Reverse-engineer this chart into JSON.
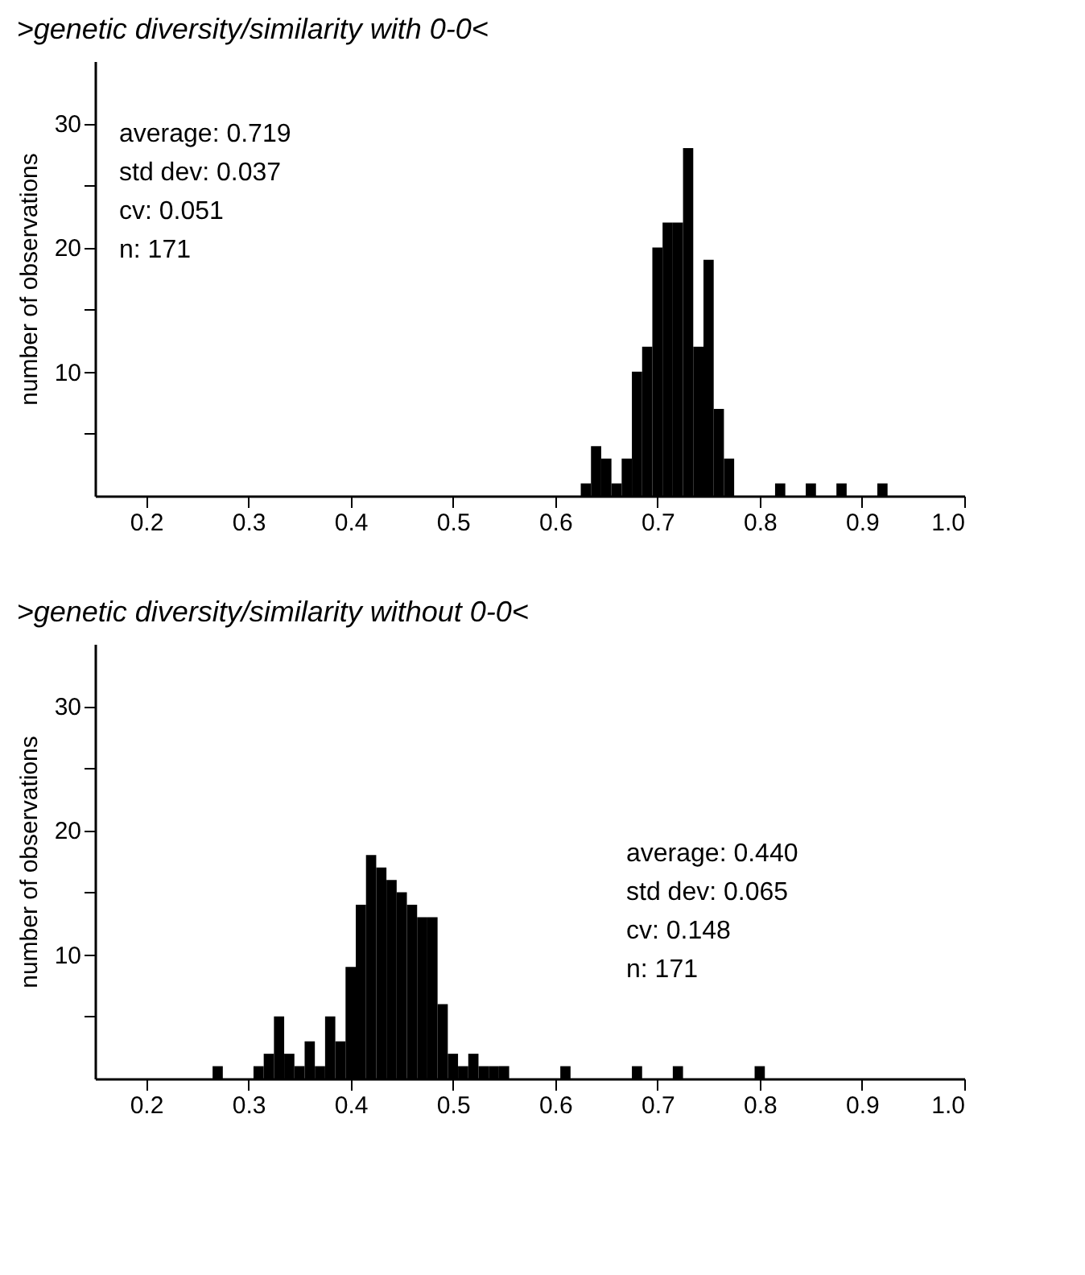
{
  "chart_data": [
    {
      "type": "histogram",
      "title": ">genetic diversity/similarity with 0-0<",
      "ylabel": "number of observations",
      "bins": [
        0.625,
        0.635,
        0.645,
        0.655,
        0.665,
        0.675,
        0.685,
        0.695,
        0.705,
        0.715,
        0.725,
        0.735,
        0.745,
        0.755,
        0.765,
        0.775,
        0.785,
        0.795,
        0.805,
        0.815,
        0.825,
        0.835,
        0.845,
        0.855,
        0.865,
        0.875,
        0.885,
        0.895,
        0.905,
        0.915,
        0.925
      ],
      "values": [
        1,
        4,
        3,
        1,
        3,
        10,
        12,
        20,
        22,
        22,
        28,
        12,
        19,
        7,
        3,
        0,
        0,
        0,
        0,
        1,
        0,
        0,
        1,
        0,
        0,
        1,
        0,
        0,
        0,
        1
      ],
      "color": "#000000",
      "xlim": [
        0.15,
        1.0
      ],
      "xticks": [
        0.2,
        0.3,
        0.4,
        0.5,
        0.6,
        0.7,
        0.8,
        0.9,
        {
          "value": 1.0,
          "label": "1.0"
        }
      ],
      "ylim": [
        0,
        35
      ],
      "yticks": [
        {
          "value": 5,
          "label": null
        },
        10,
        {
          "value": 15,
          "label": null
        },
        20,
        {
          "value": 25,
          "label": null
        },
        30
      ],
      "annotations": [
        "average: 0.719",
        "std dev: 0.037",
        "cv: 0.051",
        "n: 171"
      ],
      "grid": false
    },
    {
      "type": "histogram",
      "title": ">genetic diversity/similarity without 0-0<",
      "ylabel": "number of observations",
      "bins": [
        0.265,
        0.275,
        0.285,
        0.295,
        0.305,
        0.315,
        0.325,
        0.335,
        0.345,
        0.355,
        0.365,
        0.375,
        0.385,
        0.395,
        0.405,
        0.415,
        0.425,
        0.435,
        0.445,
        0.455,
        0.465,
        0.475,
        0.485,
        0.495,
        0.505,
        0.515,
        0.525,
        0.535,
        0.545,
        0.555,
        0.565,
        0.575,
        0.585,
        0.595,
        0.605,
        0.615,
        0.625,
        0.635,
        0.645,
        0.655,
        0.665,
        0.675,
        0.685,
        0.695,
        0.705,
        0.715,
        0.725,
        0.735,
        0.745,
        0.755,
        0.765,
        0.775,
        0.785,
        0.795,
        0.805
      ],
      "values": [
        1,
        0,
        0,
        0,
        1,
        2,
        5,
        2,
        1,
        3,
        1,
        5,
        3,
        9,
        14,
        18,
        17,
        16,
        15,
        14,
        13,
        13,
        6,
        2,
        1,
        2,
        1,
        1,
        1,
        0,
        0,
        0,
        0,
        0,
        1,
        0,
        0,
        0,
        0,
        0,
        0,
        1,
        0,
        0,
        0,
        1,
        0,
        0,
        0,
        0,
        0,
        0,
        0,
        1
      ],
      "color": "#000000",
      "xlim": [
        0.15,
        1.0
      ],
      "xticks": [
        0.2,
        0.3,
        0.4,
        0.5,
        0.6,
        0.7,
        0.8,
        0.9,
        {
          "value": 1.0,
          "label": "1.0"
        }
      ],
      "ylim": [
        0,
        35
      ],
      "yticks": [
        {
          "value": 5,
          "label": null
        },
        10,
        {
          "value": 15,
          "label": null
        },
        20,
        {
          "value": 25,
          "label": null
        },
        30
      ],
      "annotations": [
        "average: 0.440",
        "std dev: 0.065",
        "cv: 0.148",
        "n: 171"
      ],
      "grid": false
    }
  ]
}
